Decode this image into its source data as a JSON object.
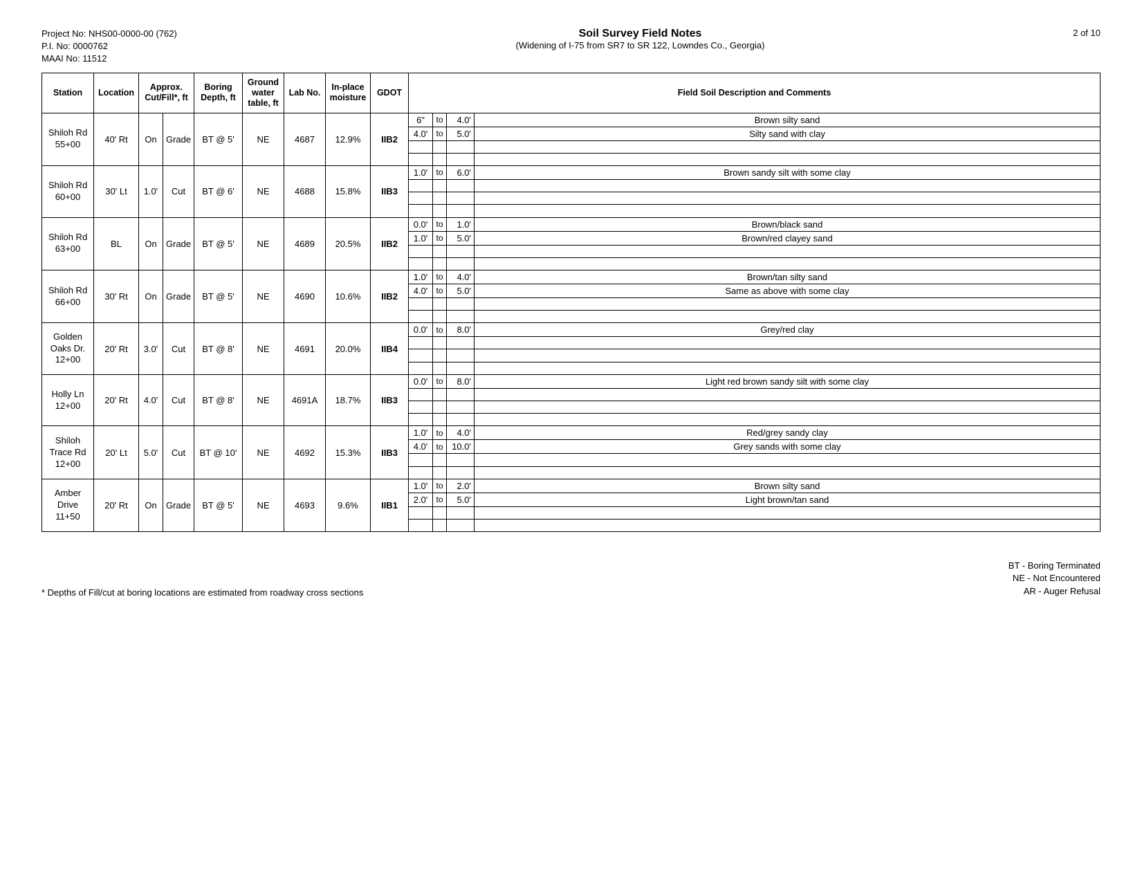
{
  "header": {
    "project_no_label": "Project No:",
    "project_no": "NHS00-0000-00 (762)",
    "pi_no_label": "P.I. No:",
    "pi_no": "0000762",
    "maai_no_label": "MAAI No:",
    "maai_no": "11512",
    "title": "Soil Survey Field Notes",
    "subtitle": "(Widening of I-75 from SR7 to SR 122, Lowndes Co., Georgia)",
    "page": "2 of 10"
  },
  "columns": {
    "station": "Station",
    "location": "Location",
    "cutfill": "Approx. Cut/Fill*, ft",
    "boring": "Boring Depth, ft",
    "gwt": "Ground water table, ft",
    "lab": "Lab No.",
    "moisture": "In-place moisture",
    "gdot": "GDOT",
    "field": "Field Soil Description and Comments"
  },
  "rows": [
    {
      "station": "Shiloh Rd 55+00",
      "location": "40' Rt",
      "cf_a": "On",
      "cf_b": "Grade",
      "boring": "BT @ 5'",
      "gwt": "NE",
      "lab": "4687",
      "moisture": "12.9%",
      "gdot": "IIB2",
      "layers": [
        {
          "from": "6\"",
          "to": "4.0'",
          "desc": "Brown silty sand"
        },
        {
          "from": "4.0'",
          "to": "5.0'",
          "desc": "Silty sand with clay"
        },
        {
          "from": "",
          "to": "",
          "desc": ""
        },
        {
          "from": "",
          "to": "",
          "desc": ""
        }
      ]
    },
    {
      "station": "Shiloh Rd 60+00",
      "location": "30' Lt",
      "cf_a": "1.0'",
      "cf_b": "Cut",
      "boring": "BT @ 6'",
      "gwt": "NE",
      "lab": "4688",
      "moisture": "15.8%",
      "gdot": "IIB3",
      "layers": [
        {
          "from": "1.0'",
          "to": "6.0'",
          "desc": "Brown sandy silt with some clay"
        },
        {
          "from": "",
          "to": "",
          "desc": ""
        },
        {
          "from": "",
          "to": "",
          "desc": ""
        },
        {
          "from": "",
          "to": "",
          "desc": ""
        }
      ]
    },
    {
      "station": "Shiloh Rd 63+00",
      "location": "BL",
      "cf_a": "On",
      "cf_b": "Grade",
      "boring": "BT @ 5'",
      "gwt": "NE",
      "lab": "4689",
      "moisture": "20.5%",
      "gdot": "IIB2",
      "layers": [
        {
          "from": "0.0'",
          "to": "1.0'",
          "desc": "Brown/black sand"
        },
        {
          "from": "1.0'",
          "to": "5.0'",
          "desc": "Brown/red clayey sand"
        },
        {
          "from": "",
          "to": "",
          "desc": ""
        },
        {
          "from": "",
          "to": "",
          "desc": ""
        }
      ]
    },
    {
      "station": "Shiloh Rd 66+00",
      "location": "30' Rt",
      "cf_a": "On",
      "cf_b": "Grade",
      "boring": "BT @ 5'",
      "gwt": "NE",
      "lab": "4690",
      "moisture": "10.6%",
      "gdot": "IIB2",
      "layers": [
        {
          "from": "1.0'",
          "to": "4.0'",
          "desc": "Brown/tan silty sand"
        },
        {
          "from": "4.0'",
          "to": "5.0'",
          "desc": "Same as above with some clay"
        },
        {
          "from": "",
          "to": "",
          "desc": ""
        },
        {
          "from": "",
          "to": "",
          "desc": ""
        }
      ]
    },
    {
      "station": "Golden Oaks Dr. 12+00",
      "location": "20' Rt",
      "cf_a": "3.0'",
      "cf_b": "Cut",
      "boring": "BT @ 8'",
      "gwt": "NE",
      "lab": "4691",
      "moisture": "20.0%",
      "gdot": "IIB4",
      "layers": [
        {
          "from": "0.0'",
          "to": "8.0'",
          "desc": "Grey/red clay"
        },
        {
          "from": "",
          "to": "",
          "desc": ""
        },
        {
          "from": "",
          "to": "",
          "desc": ""
        },
        {
          "from": "",
          "to": "",
          "desc": ""
        }
      ]
    },
    {
      "station": "Holly Ln 12+00",
      "location": "20' Rt",
      "cf_a": "4.0'",
      "cf_b": "Cut",
      "boring": "BT @ 8'",
      "gwt": "NE",
      "lab": "4691A",
      "moisture": "18.7%",
      "gdot": "IIB3",
      "layers": [
        {
          "from": "0.0'",
          "to": "8.0'",
          "desc": "Light red brown sandy silt with some clay"
        },
        {
          "from": "",
          "to": "",
          "desc": ""
        },
        {
          "from": "",
          "to": "",
          "desc": ""
        },
        {
          "from": "",
          "to": "",
          "desc": ""
        }
      ]
    },
    {
      "station": "Shiloh Trace Rd 12+00",
      "location": "20' Lt",
      "cf_a": "5.0'",
      "cf_b": "Cut",
      "boring": "BT @ 10'",
      "gwt": "NE",
      "lab": "4692",
      "moisture": "15.3%",
      "gdot": "IIB3",
      "layers": [
        {
          "from": "1.0'",
          "to": "4.0'",
          "desc": "Red/grey sandy clay"
        },
        {
          "from": "4.0'",
          "to": "10.0'",
          "desc": "Grey sands with some clay"
        },
        {
          "from": "",
          "to": "",
          "desc": ""
        },
        {
          "from": "",
          "to": "",
          "desc": ""
        }
      ]
    },
    {
      "station": "Amber Drive 11+50",
      "location": "20' Rt",
      "cf_a": "On",
      "cf_b": "Grade",
      "boring": "BT @ 5'",
      "gwt": "NE",
      "lab": "4693",
      "moisture": "9.6%",
      "gdot": "IIB1",
      "layers": [
        {
          "from": "1.0'",
          "to": "2.0'",
          "desc": "Brown silty sand"
        },
        {
          "from": "2.0'",
          "to": "5.0'",
          "desc": "Light brown/tan sand"
        },
        {
          "from": "",
          "to": "",
          "desc": ""
        },
        {
          "from": "",
          "to": "",
          "desc": ""
        }
      ]
    }
  ],
  "footer": {
    "note": "* Depths of Fill/cut at boring locations are estimated from roadway cross sections",
    "legend": [
      "BT - Boring Terminated",
      "NE - Not Encountered",
      "AR - Auger Refusal"
    ]
  },
  "style": {
    "border_color": "#000000",
    "background_color": "#ffffff",
    "font_family": "Arial",
    "base_font_size_pt": 10,
    "header_font_size_pt": 12,
    "row_inner_lines": "dashed"
  }
}
